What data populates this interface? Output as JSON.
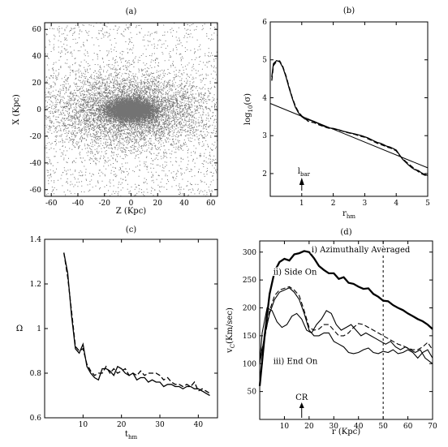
{
  "chart_data": [
    {
      "id": "a",
      "type": "scatter",
      "title": "(a)",
      "xlabel": "Z (Kpc)",
      "ylabel": "X (Kpc)",
      "xlim": [
        -65,
        65
      ],
      "ylim": [
        -65,
        65
      ],
      "xticks": [
        -60,
        -40,
        -20,
        0,
        20,
        40,
        60
      ],
      "yticks": [
        -60,
        -40,
        -20,
        0,
        20,
        40,
        60
      ],
      "distribution": {
        "center": [
          0,
          0
        ],
        "core_sigma": [
          9,
          4
        ],
        "halo_sigma": [
          30,
          14
        ],
        "background": "uniform"
      }
    },
    {
      "id": "b",
      "type": "line",
      "title": "(b)",
      "xlabel": "r",
      "xlabel_sub": "hm",
      "ylabel": "log",
      "ylabel_sub": "10",
      "ylabel_suffix": "(σ)",
      "xlim": [
        0,
        5
      ],
      "ylim": [
        1.4,
        6
      ],
      "xticks": [
        1,
        2,
        3,
        4,
        5
      ],
      "yticks": [
        2,
        3,
        4,
        5,
        6
      ],
      "annotation": {
        "text": "l",
        "sub": "bar",
        "x": 1
      },
      "series": [
        {
          "style": "solid",
          "x": [
            0.05,
            0.1,
            0.2,
            0.3,
            0.4,
            0.5,
            0.6,
            0.7,
            0.8,
            0.9,
            1.0,
            1.1,
            1.2,
            1.3,
            1.4,
            1.5,
            1.6,
            1.7,
            1.8,
            1.9,
            2.0,
            2.1,
            2.2,
            2.3,
            2.4,
            2.5,
            2.6,
            2.7,
            2.8,
            2.9,
            3.0,
            3.1,
            3.2,
            3.3,
            3.4,
            3.5,
            3.6,
            3.7,
            3.8,
            3.9,
            4.0,
            4.1,
            4.2,
            4.3,
            4.4,
            4.5,
            4.6,
            4.7,
            4.8,
            4.9,
            5.0
          ],
          "y": [
            4.55,
            4.9,
            4.98,
            4.95,
            4.8,
            4.55,
            4.25,
            3.98,
            3.75,
            3.6,
            3.5,
            3.44,
            3.42,
            3.4,
            3.37,
            3.33,
            3.29,
            3.25,
            3.22,
            3.2,
            3.19,
            3.17,
            3.15,
            3.12,
            3.1,
            3.08,
            3.06,
            3.04,
            3.02,
            3.0,
            2.97,
            2.94,
            2.9,
            2.86,
            2.82,
            2.8,
            2.76,
            2.72,
            2.7,
            2.66,
            2.62,
            2.5,
            2.38,
            2.3,
            2.22,
            2.15,
            2.1,
            2.08,
            2.02,
            1.98,
            1.95
          ]
        },
        {
          "style": "dashed",
          "x": [
            0.05,
            0.1,
            0.2,
            0.3,
            0.4,
            0.5,
            0.6,
            0.7,
            0.8,
            0.9,
            1.0,
            1.1,
            1.2,
            1.3,
            1.4,
            1.5,
            1.6,
            1.7,
            1.8,
            1.9,
            2.0,
            2.1,
            2.2,
            2.3,
            2.4,
            2.5,
            2.6,
            2.7,
            2.8,
            2.9,
            3.0,
            3.1,
            3.2,
            3.3,
            3.4,
            3.5,
            3.6,
            3.7,
            3.8,
            3.9,
            4.0,
            4.1,
            4.2,
            4.3,
            4.4,
            4.5,
            4.6,
            4.7,
            4.8,
            4.9,
            5.0
          ],
          "y": [
            4.45,
            4.85,
            4.96,
            4.97,
            4.82,
            4.58,
            4.28,
            4.0,
            3.78,
            3.62,
            3.52,
            3.46,
            3.38,
            3.36,
            3.34,
            3.3,
            3.27,
            3.24,
            3.21,
            3.19,
            3.18,
            3.16,
            3.14,
            3.12,
            3.09,
            3.07,
            3.05,
            3.03,
            3.0,
            2.98,
            2.96,
            2.92,
            2.88,
            2.84,
            2.8,
            2.77,
            2.74,
            2.7,
            2.68,
            2.64,
            2.6,
            2.48,
            2.4,
            2.32,
            2.25,
            2.18,
            2.12,
            2.05,
            2.0,
            1.96,
            1.93
          ]
        },
        {
          "style": "fit",
          "x": [
            0,
            5
          ],
          "y": [
            3.85,
            2.15
          ]
        }
      ]
    },
    {
      "id": "c",
      "type": "line",
      "title": "(c)",
      "xlabel": "t",
      "xlabel_sub": "hm",
      "ylabel": "Ω",
      "xlim": [
        0,
        45
      ],
      "ylim": [
        0.6,
        1.4
      ],
      "xticks": [
        10,
        20,
        30,
        40
      ],
      "yticks": [
        0.6,
        0.8,
        1,
        1.2,
        1.4
      ],
      "ytick_labels": [
        "0.6",
        "0.8",
        "1",
        "1.2",
        "1.4"
      ],
      "series": [
        {
          "style": "solid",
          "x": [
            5,
            6,
            7,
            8,
            9,
            10,
            11,
            12,
            13,
            14,
            15,
            16,
            17,
            18,
            19,
            20,
            21,
            22,
            23,
            24,
            25,
            26,
            27,
            28,
            29,
            30,
            31,
            32,
            33,
            34,
            35,
            36,
            37,
            38,
            39,
            40,
            41,
            42,
            43
          ],
          "y": [
            1.34,
            1.25,
            1.06,
            0.91,
            0.89,
            0.93,
            0.83,
            0.8,
            0.78,
            0.77,
            0.82,
            0.82,
            0.81,
            0.79,
            0.83,
            0.82,
            0.8,
            0.79,
            0.8,
            0.77,
            0.78,
            0.78,
            0.76,
            0.77,
            0.76,
            0.76,
            0.74,
            0.75,
            0.75,
            0.74,
            0.74,
            0.73,
            0.74,
            0.74,
            0.73,
            0.73,
            0.72,
            0.71,
            0.7
          ]
        },
        {
          "style": "dashed",
          "x": [
            5,
            6,
            7,
            8,
            9,
            10,
            11,
            12,
            13,
            14,
            15,
            16,
            17,
            18,
            19,
            20,
            21,
            22,
            23,
            24,
            25,
            26,
            27,
            28,
            29,
            30,
            31,
            32,
            33,
            34,
            35,
            36,
            37,
            38,
            39,
            40,
            41,
            42,
            43
          ],
          "y": [
            1.34,
            1.23,
            1.08,
            0.92,
            0.9,
            0.91,
            0.84,
            0.81,
            0.79,
            0.8,
            0.8,
            0.83,
            0.8,
            0.82,
            0.8,
            0.81,
            0.82,
            0.79,
            0.8,
            0.79,
            0.81,
            0.79,
            0.8,
            0.8,
            0.8,
            0.79,
            0.77,
            0.78,
            0.76,
            0.75,
            0.75,
            0.74,
            0.75,
            0.74,
            0.76,
            0.72,
            0.73,
            0.72,
            0.71
          ]
        }
      ]
    },
    {
      "id": "d",
      "type": "line",
      "title": "(d)",
      "xlabel": "r (Kpc)",
      "ylabel": "v",
      "ylabel_sub": "C",
      "ylabel_suffix": "(Km/sec)",
      "xlim": [
        0,
        70
      ],
      "ylim": [
        0,
        320
      ],
      "xticks": [
        10,
        20,
        30,
        40,
        50,
        60,
        70
      ],
      "yticks": [
        50,
        100,
        150,
        200,
        250,
        300
      ],
      "vline_x": 50,
      "annotations": [
        {
          "text": "i) Azimuthally   Averaged",
          "x": 21,
          "y": 300
        },
        {
          "text": "ii) Side On",
          "x": 5.5,
          "y": 260
        },
        {
          "text": "iii) End On",
          "x": 5.5,
          "y": 100
        },
        {
          "text": "CR",
          "x": 17,
          "y": 35
        }
      ],
      "series": [
        {
          "name": "i) Azimuthally Averaged",
          "style": "thick",
          "x": [
            0,
            2,
            4,
            6,
            8,
            10,
            12,
            14,
            16,
            18,
            20,
            22,
            24,
            26,
            28,
            30,
            32,
            34,
            36,
            38,
            40,
            42,
            44,
            46,
            48,
            50,
            52,
            54,
            56,
            58,
            60,
            62,
            64,
            66,
            68,
            70
          ],
          "y": [
            60,
            150,
            225,
            265,
            282,
            288,
            285,
            296,
            298,
            302,
            300,
            289,
            275,
            268,
            262,
            262,
            252,
            255,
            245,
            243,
            238,
            234,
            235,
            225,
            220,
            213,
            212,
            205,
            200,
            196,
            190,
            185,
            180,
            176,
            170,
            162
          ]
        },
        {
          "style": "solid",
          "x": [
            0,
            1,
            3,
            5,
            7,
            9,
            11,
            13,
            15,
            17,
            19,
            21,
            23,
            25,
            27,
            29,
            31,
            33,
            35,
            37,
            39,
            41,
            43,
            45,
            47,
            49,
            51,
            53,
            55,
            57,
            59,
            61,
            63,
            65,
            67,
            70
          ],
          "y": [
            100,
            155,
            200,
            195,
            175,
            165,
            170,
            185,
            190,
            180,
            160,
            155,
            170,
            180,
            195,
            190,
            170,
            160,
            165,
            170,
            160,
            150,
            155,
            150,
            145,
            140,
            135,
            140,
            130,
            125,
            130,
            125,
            120,
            125,
            110,
            100
          ]
        },
        {
          "style": "solid",
          "x": [
            0,
            2,
            4,
            6,
            8,
            10,
            12,
            14,
            16,
            18,
            20,
            22,
            24,
            26,
            28,
            30,
            32,
            34,
            36,
            38,
            40,
            42,
            44,
            46,
            48,
            50,
            52,
            54,
            56,
            58,
            60,
            62,
            64,
            66,
            68,
            70
          ],
          "y": [
            100,
            150,
            190,
            215,
            228,
            232,
            236,
            228,
            215,
            190,
            160,
            150,
            150,
            155,
            155,
            140,
            135,
            130,
            120,
            118,
            120,
            125,
            128,
            120,
            118,
            122,
            120,
            125,
            118,
            120,
            125,
            120,
            110,
            120,
            125,
            110
          ]
        },
        {
          "style": "dashed",
          "x": [
            0,
            2,
            4,
            6,
            8,
            10,
            12,
            14,
            16,
            18,
            20,
            22,
            24,
            26,
            28,
            30,
            32,
            34,
            36,
            38,
            40,
            42,
            44,
            46,
            48,
            50,
            52,
            54,
            56,
            58,
            60,
            62,
            64,
            66,
            68,
            70
          ],
          "y": [
            110,
            145,
            195,
            222,
            232,
            235,
            238,
            232,
            222,
            195,
            165,
            160,
            162,
            170,
            170,
            160,
            150,
            150,
            155,
            165,
            172,
            170,
            165,
            160,
            155,
            150,
            145,
            140,
            135,
            132,
            128,
            125,
            125,
            130,
            138,
            125
          ]
        }
      ]
    }
  ]
}
